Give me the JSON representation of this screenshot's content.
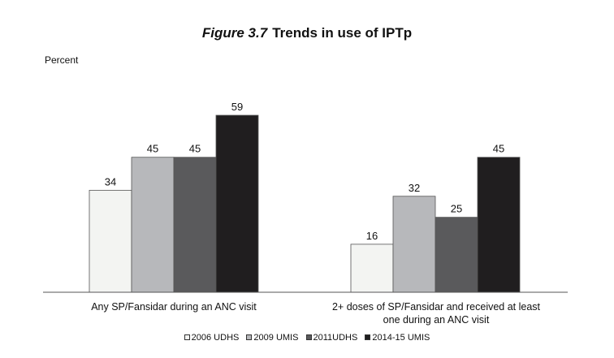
{
  "figure": {
    "number": "Figure 3.7",
    "title": "Trends in use of IPTp"
  },
  "chart_data": {
    "type": "bar",
    "title": "Trends in use of IPTp",
    "ylabel": "Percent",
    "xlabel": "",
    "ylim": [
      0,
      70
    ],
    "grid": false,
    "legend_position": "bottom",
    "categories": [
      "Any SP/Fansidar during an ANC visit",
      "2+ doses of SP/Fansidar and received at least one during an ANC visit"
    ],
    "series": [
      {
        "name": "2006 UDHS",
        "color": "#f3f4f2",
        "values": [
          34,
          16
        ]
      },
      {
        "name": "2009 UMIS",
        "color": "#b7b8bb",
        "values": [
          45,
          32
        ]
      },
      {
        "name": "2011UDHS",
        "color": "#5a5a5c",
        "values": [
          45,
          25
        ]
      },
      {
        "name": "2014-15 UMIS",
        "color": "#201e1f",
        "values": [
          59,
          45
        ]
      }
    ]
  }
}
